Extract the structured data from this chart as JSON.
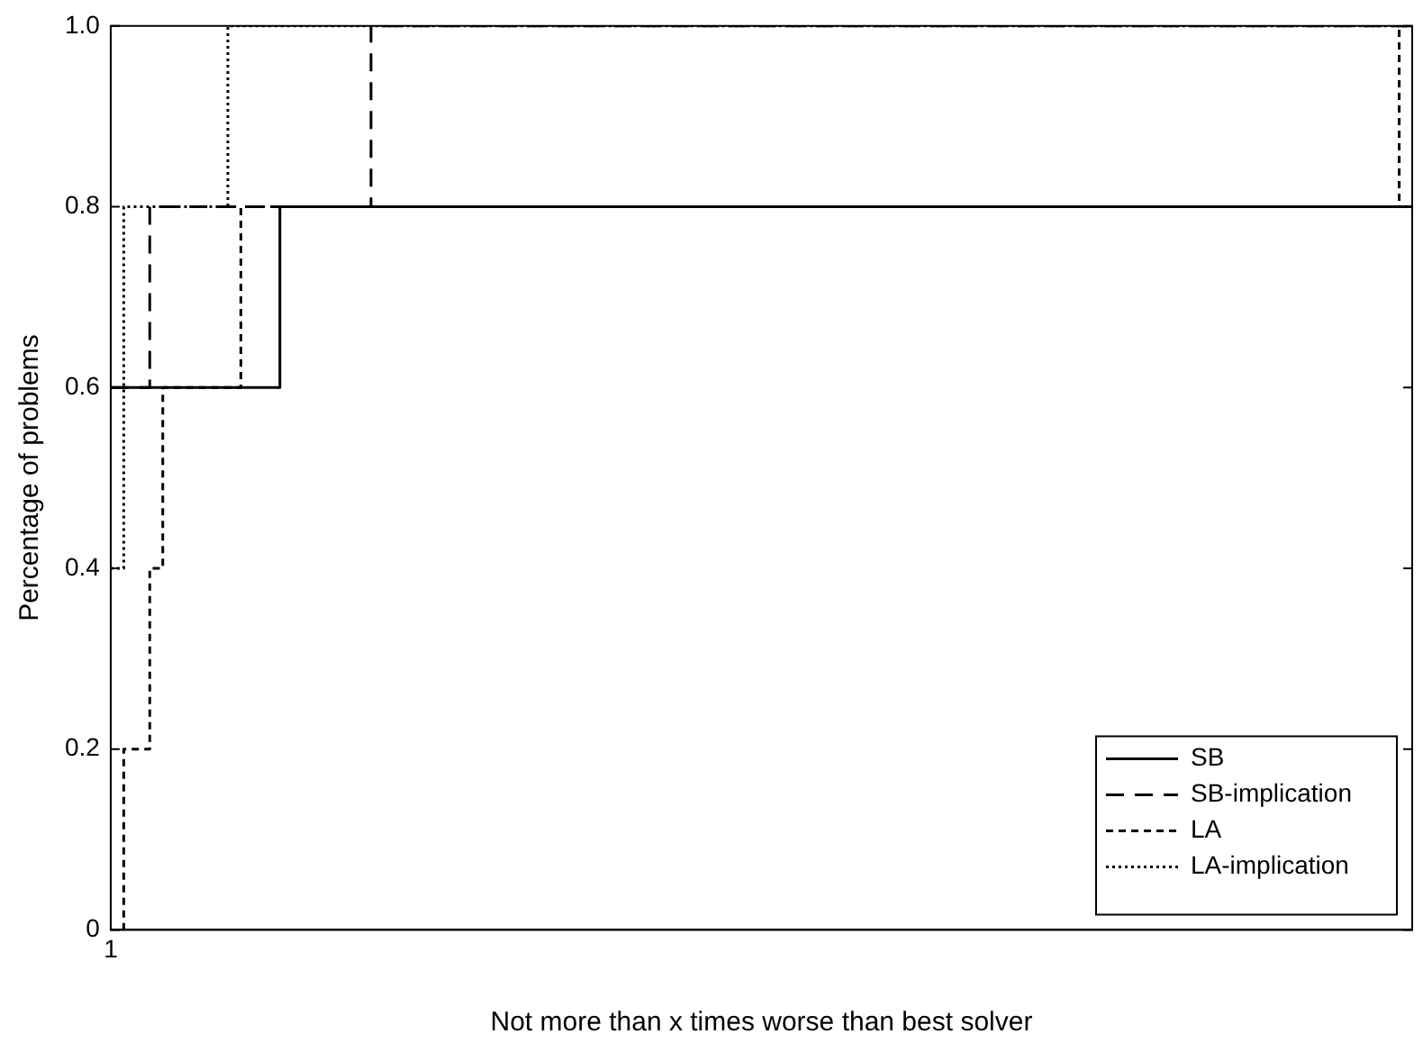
{
  "chart_data": {
    "type": "step",
    "xlabel": "Not more than x times worse than best solver",
    "ylabel": "Percentage of problems",
    "categories": [
      "1",
      null,
      null,
      null,
      null,
      null,
      null,
      null,
      null,
      null,
      null,
      null,
      null,
      null,
      null,
      null,
      null,
      null,
      null,
      null,
      null,
      null,
      null,
      null,
      null,
      null,
      null,
      null,
      null,
      null,
      null,
      null,
      null,
      null,
      null,
      null,
      null,
      null,
      null,
      null,
      null,
      null,
      null,
      null,
      null,
      null,
      null,
      null,
      null,
      null,
      null,
      null,
      null,
      null,
      null,
      null,
      null,
      null,
      null,
      null,
      null,
      null,
      null,
      null,
      null,
      null,
      null,
      null,
      null,
      null,
      null,
      null,
      null,
      null,
      null,
      null,
      null,
      null,
      null,
      null,
      null,
      null,
      null,
      null,
      null,
      null,
      null,
      null,
      null,
      null,
      null,
      null,
      null,
      null,
      null,
      null,
      null,
      null,
      null,
      null,
      null
    ],
    "ylim": [
      0,
      1
    ],
    "yticks": [
      {
        "value": 0,
        "label": "0"
      },
      {
        "value": 0.2,
        "label": "0.2"
      },
      {
        "value": 0.4,
        "label": "0.4"
      },
      {
        "value": 0.6,
        "label": "0.6"
      },
      {
        "value": 0.8,
        "label": "0.8"
      },
      {
        "value": 1,
        "label": "1.0"
      }
    ],
    "grid": false,
    "legend": "bottom right",
    "marker": "none",
    "series": [
      {
        "name": "SB",
        "color": "#000000",
        "line_style": "solid",
        "values": [
          0.6,
          0.6,
          0.6,
          0.6,
          0.6,
          0.6,
          0.6,
          0.6,
          0.6,
          0.6,
          0.6,
          0.6,
          0.6,
          0.8,
          0.8,
          0.8,
          0.8,
          0.8,
          0.8,
          0.8,
          0.8,
          0.8,
          0.8,
          0.8,
          0.8,
          0.8,
          0.8,
          0.8,
          0.8,
          0.8,
          0.8,
          0.8,
          0.8,
          0.8,
          0.8,
          0.8,
          0.8,
          0.8,
          0.8,
          0.8,
          0.8,
          0.8,
          0.8,
          0.8,
          0.8,
          0.8,
          0.8,
          0.8,
          0.8,
          0.8,
          0.8,
          0.8,
          0.8,
          0.8,
          0.8,
          0.8,
          0.8,
          0.8,
          0.8,
          0.8,
          0.8,
          0.8,
          0.8,
          0.8,
          0.8,
          0.8,
          0.8,
          0.8,
          0.8,
          0.8,
          0.8,
          0.8,
          0.8,
          0.8,
          0.8,
          0.8,
          0.8,
          0.8,
          0.8,
          0.8,
          0.8,
          0.8,
          0.8,
          0.8,
          0.8,
          0.8,
          0.8,
          0.8,
          0.8,
          0.8,
          0.8,
          0.8,
          0.8,
          0.8,
          0.8,
          0.8,
          0.8,
          0.8,
          0.8,
          0.8,
          0.8
        ]
      },
      {
        "name": "SB-implication",
        "color": "#000000",
        "line_style": "longdash",
        "values": [
          0.6,
          0.6,
          0.6,
          0.8,
          0.8,
          0.8,
          0.8,
          0.8,
          0.8,
          0.8,
          0.8,
          0.8,
          0.8,
          0.8,
          0.8,
          0.8,
          0.8,
          0.8,
          0.8,
          0.8,
          1,
          1,
          1,
          1,
          1,
          1,
          1,
          1,
          1,
          1,
          1,
          1,
          1,
          1,
          1,
          1,
          1,
          1,
          1,
          1,
          1,
          1,
          1,
          1,
          1,
          1,
          1,
          1,
          1,
          1,
          1,
          1,
          1,
          1,
          1,
          1,
          1,
          1,
          1,
          1,
          1,
          1,
          1,
          1,
          1,
          1,
          1,
          1,
          1,
          1,
          1,
          1,
          1,
          1,
          1,
          1,
          1,
          1,
          1,
          1,
          1,
          1,
          1,
          1,
          1,
          1,
          1,
          1,
          1,
          1,
          1,
          1,
          1,
          1,
          1,
          1,
          1,
          1,
          1,
          1,
          1
        ]
      },
      {
        "name": "LA",
        "color": "#000000",
        "line_style": "dashed",
        "values": [
          0,
          0.2,
          0.2,
          0.4,
          0.6,
          0.6,
          0.6,
          0.6,
          0.6,
          0.6,
          0.8,
          0.8,
          0.8,
          0.8,
          0.8,
          0.8,
          0.8,
          0.8,
          0.8,
          0.8,
          0.8,
          0.8,
          0.8,
          0.8,
          0.8,
          0.8,
          0.8,
          0.8,
          0.8,
          0.8,
          0.8,
          0.8,
          0.8,
          0.8,
          0.8,
          0.8,
          0.8,
          0.8,
          0.8,
          0.8,
          0.8,
          0.8,
          0.8,
          0.8,
          0.8,
          0.8,
          0.8,
          0.8,
          0.8,
          0.8,
          0.8,
          0.8,
          0.8,
          0.8,
          0.8,
          0.8,
          0.8,
          0.8,
          0.8,
          0.8,
          0.8,
          0.8,
          0.8,
          0.8,
          0.8,
          0.8,
          0.8,
          0.8,
          0.8,
          0.8,
          0.8,
          0.8,
          0.8,
          0.8,
          0.8,
          0.8,
          0.8,
          0.8,
          0.8,
          0.8,
          0.8,
          0.8,
          0.8,
          0.8,
          0.8,
          0.8,
          0.8,
          0.8,
          0.8,
          0.8,
          0.8,
          0.8,
          0.8,
          0.8,
          0.8,
          0.8,
          0.8,
          0.8,
          0.8,
          1,
          1
        ]
      },
      {
        "name": "LA-implication",
        "color": "#000000",
        "line_style": "dotted",
        "values": [
          0.4,
          0.8,
          0.8,
          0.8,
          0.8,
          0.8,
          0.8,
          0.8,
          0.8,
          1,
          1,
          1,
          1,
          1,
          1,
          1,
          1,
          1,
          1,
          1,
          1,
          1,
          1,
          1,
          1,
          1,
          1,
          1,
          1,
          1,
          1,
          1,
          1,
          1,
          1,
          1,
          1,
          1,
          1,
          1,
          1,
          1,
          1,
          1,
          1,
          1,
          1,
          1,
          1,
          1,
          1,
          1,
          1,
          1,
          1,
          1,
          1,
          1,
          1,
          1,
          1,
          1,
          1,
          1,
          1,
          1,
          1,
          1,
          1,
          1,
          1,
          1,
          1,
          1,
          1,
          1,
          1,
          1,
          1,
          1,
          1,
          1,
          1,
          1,
          1,
          1,
          1,
          1,
          1,
          1,
          1,
          1,
          1,
          1,
          1,
          1,
          1,
          1,
          1,
          1,
          1
        ]
      }
    ]
  }
}
